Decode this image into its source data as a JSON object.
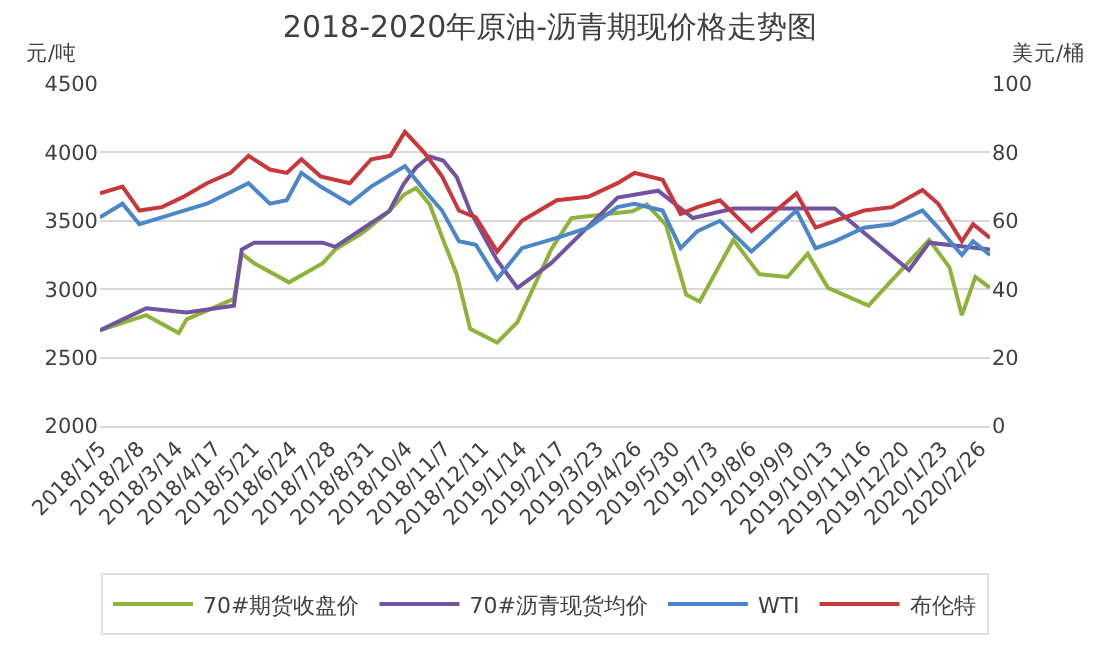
{
  "chart_data": {
    "type": "line",
    "title": "2018-2020年原油-沥青期现价格走势图",
    "ylabel": "元/吨",
    "y2label": "美元/桶",
    "xlim": [
      "2018-01-05",
      "2020-03-06"
    ],
    "xticks": [
      {
        "value": "2018-01-05",
        "label": "2018/1/5"
      },
      {
        "value": "2018-02-08",
        "label": "2018/2/8"
      },
      {
        "value": "2018-03-14",
        "label": "2018/3/14"
      },
      {
        "value": "2018-04-17",
        "label": "2018/4/17"
      },
      {
        "value": "2018-05-21",
        "label": "2018/5/21"
      },
      {
        "value": "2018-06-24",
        "label": "2018/6/24"
      },
      {
        "value": "2018-07-28",
        "label": "2018/7/28"
      },
      {
        "value": "2018-08-31",
        "label": "2018/8/31"
      },
      {
        "value": "2018-10-04",
        "label": "2018/10/4"
      },
      {
        "value": "2018-11-07",
        "label": "2018/11/7"
      },
      {
        "value": "2018-12-11",
        "label": "2018/12/11"
      },
      {
        "value": "2019-01-14",
        "label": "2019/1/14"
      },
      {
        "value": "2019-02-17",
        "label": "2019/2/17"
      },
      {
        "value": "2019-03-23",
        "label": "2019/3/23"
      },
      {
        "value": "2019-04-26",
        "label": "2019/4/26"
      },
      {
        "value": "2019-05-30",
        "label": "2019/5/30"
      },
      {
        "value": "2019-07-03",
        "label": "2019/7/3"
      },
      {
        "value": "2019-08-06",
        "label": "2019/8/6"
      },
      {
        "value": "2019-09-09",
        "label": "2019/9/9"
      },
      {
        "value": "2019-10-13",
        "label": "2019/10/13"
      },
      {
        "value": "2019-11-16",
        "label": "2019/11/16"
      },
      {
        "value": "2019-12-20",
        "label": "2019/12/20"
      },
      {
        "value": "2020-01-23",
        "label": "2020/1/23"
      },
      {
        "value": "2020-02-26",
        "label": "2020/2/26"
      }
    ],
    "ylim": [
      2000,
      4500
    ],
    "yticks": [
      2000,
      2500,
      3000,
      3500,
      4000,
      4500
    ],
    "y2lim": [
      0,
      100
    ],
    "y2ticks": [
      0,
      20,
      40,
      60,
      80,
      100
    ],
    "grid": "y",
    "legend": "bottom",
    "marker": "none",
    "line_style": "solid",
    "series": [
      {
        "name": "70#期货收盘价",
        "color": "#8db33b",
        "x": [
          "2018-01-05",
          "2018-02-15",
          "2018-03-16",
          "2018-03-23",
          "2018-05-04",
          "2018-05-11",
          "2018-05-22",
          "2018-06-22",
          "2018-07-22",
          "2018-08-02",
          "2018-08-26",
          "2018-09-19",
          "2018-10-02",
          "2018-10-13",
          "2018-10-25",
          "2018-11-06",
          "2018-11-18",
          "2018-11-30",
          "2018-12-24",
          "2019-01-11",
          "2019-02-10",
          "2019-02-28",
          "2019-04-23",
          "2019-05-06",
          "2019-05-23",
          "2019-06-10",
          "2019-06-22",
          "2019-07-22",
          "2019-08-14",
          "2019-09-08",
          "2019-09-26",
          "2019-10-14",
          "2019-11-19",
          "2019-12-07",
          "2020-01-12",
          "2020-01-30",
          "2020-02-10",
          "2020-02-22",
          "2020-03-06"
        ],
        "values": [
          2700,
          2810,
          2680,
          2780,
          2930,
          3260,
          3190,
          3050,
          3190,
          3290,
          3410,
          3570,
          3690,
          3740,
          3620,
          3360,
          3110,
          2710,
          2610,
          2760,
          3290,
          3520,
          3570,
          3620,
          3470,
          2960,
          2910,
          3360,
          3110,
          3090,
          3260,
          3010,
          2880,
          3040,
          3360,
          3160,
          2810,
          3090,
          3010
        ]
      },
      {
        "name": "70#沥青现货均价",
        "color": "#7153a0",
        "x": [
          "2018-01-05",
          "2018-02-15",
          "2018-03-23",
          "2018-05-04",
          "2018-05-11",
          "2018-05-22",
          "2018-07-22",
          "2018-08-02",
          "2018-08-26",
          "2018-09-19",
          "2018-10-02",
          "2018-10-13",
          "2018-10-25",
          "2018-11-06",
          "2018-11-18",
          "2018-11-30",
          "2018-12-24",
          "2019-01-11",
          "2019-02-10",
          "2019-04-10",
          "2019-05-16",
          "2019-06-16",
          "2019-07-22",
          "2019-10-20",
          "2019-12-25",
          "2020-01-12",
          "2020-03-06"
        ],
        "values": [
          2700,
          2860,
          2830,
          2880,
          3290,
          3340,
          3340,
          3310,
          3440,
          3570,
          3770,
          3890,
          3970,
          3940,
          3820,
          3570,
          3210,
          3010,
          3190,
          3670,
          3720,
          3520,
          3590,
          3590,
          3140,
          3340,
          3290
        ]
      },
      {
        "name": "WTI",
        "color": "#4a86c8",
        "axis": "y2",
        "x": [
          "2018-01-05",
          "2018-01-25",
          "2018-02-09",
          "2018-03-01",
          "2018-04-10",
          "2018-05-17",
          "2018-06-05",
          "2018-06-20",
          "2018-07-03",
          "2018-07-20",
          "2018-08-15",
          "2018-09-03",
          "2018-10-03",
          "2018-10-20",
          "2018-11-05",
          "2018-11-20",
          "2018-12-05",
          "2018-12-24",
          "2019-01-15",
          "2019-02-15",
          "2019-03-15",
          "2019-04-10",
          "2019-04-25",
          "2019-05-20",
          "2019-06-05",
          "2019-06-20",
          "2019-07-10",
          "2019-08-07",
          "2019-09-16",
          "2019-10-03",
          "2019-10-20",
          "2019-11-15",
          "2019-12-10",
          "2020-01-06",
          "2020-01-20",
          "2020-02-10",
          "2020-02-20",
          "2020-03-06"
        ],
        "values": [
          61,
          65,
          59,
          61,
          65,
          71,
          65,
          66,
          74,
          70,
          65,
          70,
          76,
          69,
          63,
          54,
          53,
          43,
          52,
          55,
          58,
          64,
          65,
          63,
          52,
          57,
          60,
          51,
          63,
          52,
          54,
          58,
          59,
          63,
          58,
          50,
          54,
          50
        ]
      },
      {
        "name": "布伦特",
        "color": "#c8383a",
        "axis": "y2",
        "x": [
          "2018-01-05",
          "2018-01-25",
          "2018-02-09",
          "2018-03-01",
          "2018-03-20",
          "2018-04-10",
          "2018-05-01",
          "2018-05-17",
          "2018-06-05",
          "2018-06-20",
          "2018-07-03",
          "2018-07-20",
          "2018-08-15",
          "2018-09-03",
          "2018-09-20",
          "2018-10-03",
          "2018-10-20",
          "2018-11-05",
          "2018-11-20",
          "2018-12-05",
          "2018-12-24",
          "2019-01-15",
          "2019-02-15",
          "2019-03-15",
          "2019-04-10",
          "2019-04-25",
          "2019-05-20",
          "2019-06-05",
          "2019-06-20",
          "2019-07-10",
          "2019-08-07",
          "2019-09-16",
          "2019-10-03",
          "2019-10-20",
          "2019-11-15",
          "2019-12-10",
          "2020-01-06",
          "2020-01-20",
          "2020-02-10",
          "2020-02-20",
          "2020-03-06"
        ],
        "values": [
          68,
          70,
          63,
          64,
          67,
          71,
          74,
          79,
          75,
          74,
          78,
          73,
          71,
          78,
          79,
          86,
          80,
          73,
          63,
          61,
          51,
          60,
          66,
          67,
          71,
          74,
          72,
          62,
          64,
          66,
          57,
          68,
          58,
          60,
          63,
          64,
          69,
          65,
          54,
          59,
          55
        ]
      }
    ]
  }
}
